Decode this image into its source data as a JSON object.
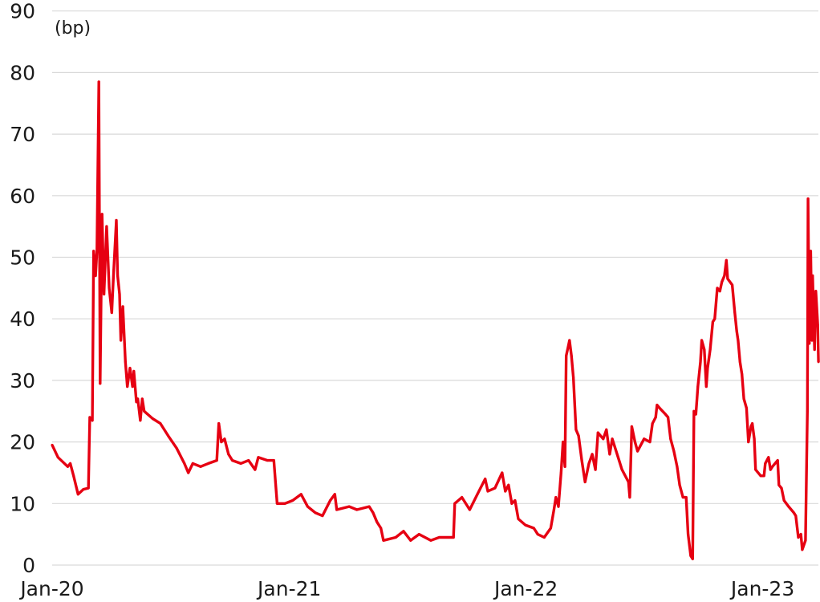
{
  "chart_data": {
    "type": "line",
    "title": "",
    "xlabel": "",
    "ylabel": "(bp)",
    "ylim": [
      0,
      90
    ],
    "yticks": [
      "0",
      "10",
      "20",
      "30",
      "40",
      "50",
      "60",
      "70",
      "80",
      "90"
    ],
    "xticks": [
      {
        "label": "Jan-20",
        "date": "2020-01-01"
      },
      {
        "label": "Jan-21",
        "date": "2021-01-01"
      },
      {
        "label": "Jan-22",
        "date": "2022-01-01"
      },
      {
        "label": "Jan-23",
        "date": "2023-01-01"
      }
    ],
    "xlim": [
      "2020-01-01",
      "2023-03-28"
    ],
    "grid": "horizontal",
    "legend": "none",
    "series": [
      {
        "color": "#e60012",
        "points": [
          [
            "2020-01-01",
            19.5
          ],
          [
            "2020-01-10",
            17.5
          ],
          [
            "2020-01-25",
            16
          ],
          [
            "2020-01-29",
            16.5
          ],
          [
            "2020-02-03",
            14.5
          ],
          [
            "2020-02-10",
            11.5
          ],
          [
            "2020-02-18",
            12.3
          ],
          [
            "2020-02-26",
            12.5
          ],
          [
            "2020-02-28",
            24
          ],
          [
            "2020-03-03",
            23.5
          ],
          [
            "2020-03-05",
            51
          ],
          [
            "2020-03-08",
            47
          ],
          [
            "2020-03-10",
            51
          ],
          [
            "2020-03-13",
            78.5
          ],
          [
            "2020-03-15",
            29.5
          ],
          [
            "2020-03-18",
            57
          ],
          [
            "2020-03-21",
            44
          ],
          [
            "2020-03-25",
            55
          ],
          [
            "2020-03-29",
            45
          ],
          [
            "2020-04-02",
            41
          ],
          [
            "2020-04-05",
            48
          ],
          [
            "2020-04-09",
            56
          ],
          [
            "2020-04-11",
            47
          ],
          [
            "2020-04-14",
            44
          ],
          [
            "2020-04-16",
            36.5
          ],
          [
            "2020-04-19",
            42
          ],
          [
            "2020-04-23",
            33
          ],
          [
            "2020-04-26",
            29
          ],
          [
            "2020-04-30",
            32
          ],
          [
            "2020-05-04",
            29
          ],
          [
            "2020-05-06",
            31.5
          ],
          [
            "2020-05-10",
            26.5
          ],
          [
            "2020-05-12",
            27
          ],
          [
            "2020-05-16",
            23.5
          ],
          [
            "2020-05-19",
            27
          ],
          [
            "2020-05-22",
            25
          ],
          [
            "2020-06-04",
            23.8
          ],
          [
            "2020-06-16",
            23
          ],
          [
            "2020-06-28",
            21
          ],
          [
            "2020-07-11",
            19
          ],
          [
            "2020-07-23",
            16.5
          ],
          [
            "2020-07-29",
            15
          ],
          [
            "2020-08-05",
            16.5
          ],
          [
            "2020-08-17",
            16
          ],
          [
            "2020-08-29",
            16.5
          ],
          [
            "2020-09-11",
            17
          ],
          [
            "2020-09-14",
            23
          ],
          [
            "2020-09-18",
            20
          ],
          [
            "2020-09-23",
            20.5
          ],
          [
            "2020-09-29",
            18
          ],
          [
            "2020-10-05",
            17
          ],
          [
            "2020-10-18",
            16.5
          ],
          [
            "2020-10-30",
            17
          ],
          [
            "2020-11-09",
            15.5
          ],
          [
            "2020-11-14",
            17.5
          ],
          [
            "2020-11-28",
            17
          ],
          [
            "2020-12-08",
            17
          ],
          [
            "2020-12-13",
            10
          ],
          [
            "2020-12-25",
            10
          ],
          [
            "2021-01-06",
            10.5
          ],
          [
            "2021-01-19",
            11.5
          ],
          [
            "2021-01-29",
            9.5
          ],
          [
            "2021-02-10",
            8.5
          ],
          [
            "2021-02-21",
            8
          ],
          [
            "2021-03-05",
            10.5
          ],
          [
            "2021-03-12",
            11.5
          ],
          [
            "2021-03-15",
            9
          ],
          [
            "2021-04-03",
            9.5
          ],
          [
            "2021-04-15",
            9
          ],
          [
            "2021-05-04",
            9.5
          ],
          [
            "2021-05-10",
            8.5
          ],
          [
            "2021-05-16",
            7
          ],
          [
            "2021-05-22",
            6
          ],
          [
            "2021-05-26",
            4
          ],
          [
            "2021-06-14",
            4.5
          ],
          [
            "2021-06-26",
            5.5
          ],
          [
            "2021-07-07",
            4
          ],
          [
            "2021-07-20",
            5
          ],
          [
            "2021-08-07",
            4
          ],
          [
            "2021-08-20",
            4.5
          ],
          [
            "2021-09-11",
            4.5
          ],
          [
            "2021-09-13",
            10
          ],
          [
            "2021-09-24",
            11
          ],
          [
            "2021-10-06",
            9
          ],
          [
            "2021-10-18",
            11.5
          ],
          [
            "2021-10-30",
            14
          ],
          [
            "2021-11-03",
            12
          ],
          [
            "2021-11-14",
            12.5
          ],
          [
            "2021-11-25",
            15
          ],
          [
            "2021-11-30",
            12
          ],
          [
            "2021-12-05",
            13
          ],
          [
            "2021-12-10",
            10
          ],
          [
            "2021-12-15",
            10.5
          ],
          [
            "2021-12-20",
            7.5
          ],
          [
            "2021-12-31",
            6.5
          ],
          [
            "2022-01-13",
            6
          ],
          [
            "2022-01-19",
            5
          ],
          [
            "2022-01-29",
            4.5
          ],
          [
            "2022-02-08",
            6
          ],
          [
            "2022-02-13",
            9
          ],
          [
            "2022-02-16",
            11
          ],
          [
            "2022-02-20",
            9.5
          ],
          [
            "2022-02-24",
            15
          ],
          [
            "2022-02-27",
            20
          ],
          [
            "2022-03-02",
            16
          ],
          [
            "2022-03-04",
            34
          ],
          [
            "2022-03-07",
            35.5
          ],
          [
            "2022-03-09",
            36.5
          ],
          [
            "2022-03-12",
            34
          ],
          [
            "2022-03-15",
            30.5
          ],
          [
            "2022-03-19",
            22
          ],
          [
            "2022-03-23",
            21
          ],
          [
            "2022-03-28",
            17
          ],
          [
            "2022-04-02",
            13.5
          ],
          [
            "2022-04-08",
            16.5
          ],
          [
            "2022-04-13",
            18
          ],
          [
            "2022-04-18",
            15.5
          ],
          [
            "2022-04-22",
            21.5
          ],
          [
            "2022-04-30",
            20.5
          ],
          [
            "2022-05-05",
            22
          ],
          [
            "2022-05-10",
            18
          ],
          [
            "2022-05-14",
            20.5
          ],
          [
            "2022-05-23",
            17.5
          ],
          [
            "2022-05-29",
            15.5
          ],
          [
            "2022-06-08",
            13.5
          ],
          [
            "2022-06-10",
            11
          ],
          [
            "2022-06-13",
            22.5
          ],
          [
            "2022-06-18",
            20
          ],
          [
            "2022-06-22",
            18.5
          ],
          [
            "2022-07-02",
            20.5
          ],
          [
            "2022-07-11",
            20
          ],
          [
            "2022-07-15",
            23
          ],
          [
            "2022-07-20",
            24
          ],
          [
            "2022-07-22",
            26
          ],
          [
            "2022-07-26",
            25.5
          ],
          [
            "2022-08-04",
            24.5
          ],
          [
            "2022-08-08",
            24
          ],
          [
            "2022-08-12",
            20.5
          ],
          [
            "2022-08-17",
            18.5
          ],
          [
            "2022-08-22",
            16
          ],
          [
            "2022-08-26",
            13
          ],
          [
            "2022-08-31",
            11
          ],
          [
            "2022-09-05",
            11
          ],
          [
            "2022-09-08",
            5
          ],
          [
            "2022-09-12",
            1.5
          ],
          [
            "2022-09-15",
            1
          ],
          [
            "2022-09-17",
            25
          ],
          [
            "2022-09-20",
            24.5
          ],
          [
            "2022-09-23",
            29
          ],
          [
            "2022-09-27",
            33
          ],
          [
            "2022-09-29",
            36.5
          ],
          [
            "2022-10-03",
            35
          ],
          [
            "2022-10-06",
            29
          ],
          [
            "2022-10-08",
            32
          ],
          [
            "2022-10-12",
            35
          ],
          [
            "2022-10-16",
            39.5
          ],
          [
            "2022-10-19",
            40
          ],
          [
            "2022-10-23",
            45
          ],
          [
            "2022-10-27",
            44.5
          ],
          [
            "2022-10-30",
            46
          ],
          [
            "2022-11-03",
            47
          ],
          [
            "2022-11-06",
            49.5
          ],
          [
            "2022-11-08",
            46.5
          ],
          [
            "2022-11-15",
            45.5
          ],
          [
            "2022-11-19",
            41
          ],
          [
            "2022-11-22",
            38
          ],
          [
            "2022-11-24",
            36.5
          ],
          [
            "2022-11-27",
            33
          ],
          [
            "2022-11-30",
            31
          ],
          [
            "2022-12-03",
            27
          ],
          [
            "2022-12-07",
            25.5
          ],
          [
            "2022-12-10",
            20
          ],
          [
            "2022-12-14",
            22.5
          ],
          [
            "2022-12-16",
            23
          ],
          [
            "2022-12-19",
            20.5
          ],
          [
            "2022-12-21",
            15.5
          ],
          [
            "2022-12-29",
            14.5
          ],
          [
            "2023-01-03",
            14.5
          ],
          [
            "2023-01-05",
            16.5
          ],
          [
            "2023-01-10",
            17.5
          ],
          [
            "2023-01-13",
            15.5
          ],
          [
            "2023-01-16",
            16
          ],
          [
            "2023-01-24",
            17
          ],
          [
            "2023-01-26",
            13
          ],
          [
            "2023-01-30",
            12.5
          ],
          [
            "2023-02-03",
            10.5
          ],
          [
            "2023-02-10",
            9.5
          ],
          [
            "2023-02-18",
            8.5
          ],
          [
            "2023-02-21",
            8
          ],
          [
            "2023-02-25",
            4.5
          ],
          [
            "2023-03-01",
            5
          ],
          [
            "2023-03-03",
            2.5
          ],
          [
            "2023-03-08",
            4
          ],
          [
            "2023-03-11",
            25
          ],
          [
            "2023-03-12",
            59.5
          ],
          [
            "2023-03-14",
            36
          ],
          [
            "2023-03-16",
            51
          ],
          [
            "2023-03-18",
            36.5
          ],
          [
            "2023-03-19",
            47
          ],
          [
            "2023-03-22",
            35
          ],
          [
            "2023-03-24",
            44.5
          ],
          [
            "2023-03-27",
            39
          ],
          [
            "2023-03-28",
            33
          ]
        ]
      }
    ]
  }
}
